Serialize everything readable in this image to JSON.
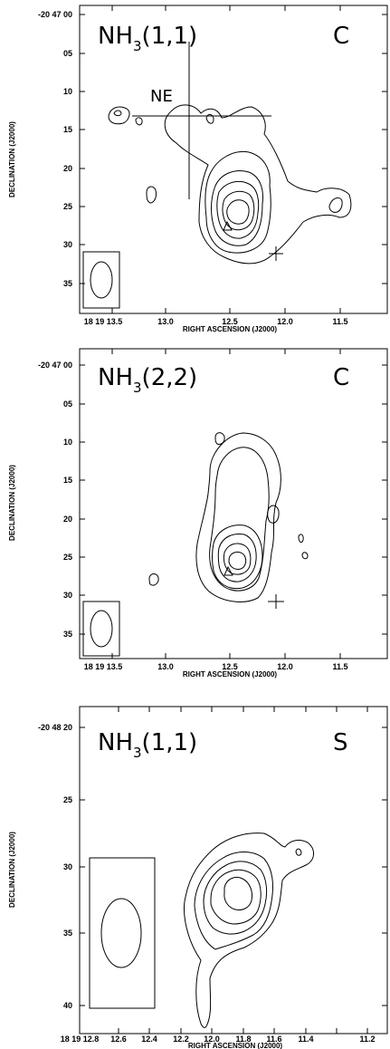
{
  "panels": [
    {
      "molecule": "NH",
      "subscript": "3",
      "transition": "(1,1)",
      "region": "C",
      "label_ne": "NE",
      "y_ticks": [
        "-20 47 00",
        "05",
        "10",
        "15",
        "20",
        "25",
        "30",
        "35"
      ],
      "x_ticks": [
        "18 19 13.5",
        "13.0",
        "12.5",
        "12.0",
        "11.5"
      ],
      "xlabel": "RIGHT ASCENSION (J2000)",
      "ylabel": "DECLINATION (J2000)"
    },
    {
      "molecule": "NH",
      "subscript": "3",
      "transition": "(2,2)",
      "region": "C",
      "y_ticks": [
        "-20 47 00",
        "05",
        "10",
        "15",
        "20",
        "25",
        "30",
        "35"
      ],
      "x_ticks": [
        "18 19 13.5",
        "13.0",
        "12.5",
        "12.0",
        "11.5"
      ],
      "xlabel": "RIGHT ASCENSION (J2000)",
      "ylabel": "DECLINATION (J2000)"
    },
    {
      "molecule": "NH",
      "subscript": "3",
      "transition": "(1,1)",
      "region": "S",
      "y_ticks": [
        "-20 48 20",
        "25",
        "30",
        "35",
        "40"
      ],
      "x_ticks": [
        "18 19 12.8",
        "12.6",
        "12.4",
        "12.2",
        "12.0",
        "11.8",
        "11.6",
        "11.4",
        "11.2"
      ],
      "xlabel": "RIGHT ASCENSION (J2000)",
      "ylabel": "DECLINATION (J2000)"
    }
  ]
}
